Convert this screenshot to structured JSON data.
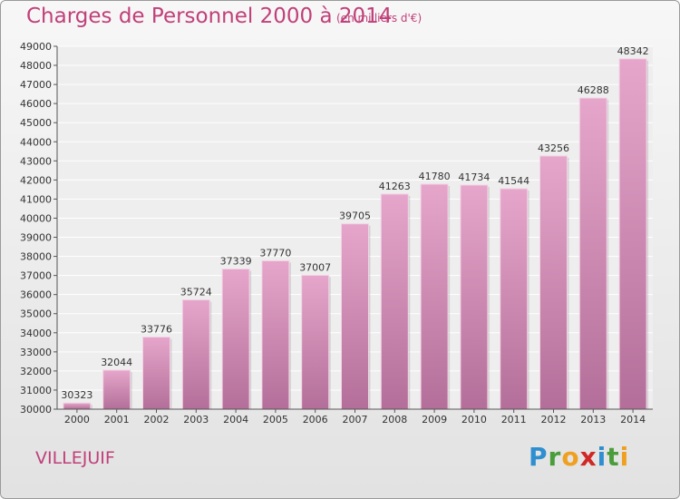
{
  "header": {
    "title": "Charges de Personnel 2000 à 2014",
    "subtitle": "(en milliers d'€)"
  },
  "footer": {
    "city": "VILLEJUIF",
    "logo": {
      "letters": [
        "P",
        "r",
        "o",
        "x",
        "i",
        "t",
        "i"
      ],
      "colors": [
        "#2e8fd0",
        "#4a9d3a",
        "#f0a020",
        "#d02828",
        "#2e8fd0",
        "#4a9d3a",
        "#f0a020"
      ]
    }
  },
  "colors": {
    "accent": "#c0407a",
    "bar_top": "#e6a6cb",
    "bar_bottom": "#b36f99"
  },
  "chart_data": {
    "type": "bar",
    "title": "Charges de Personnel 2000 à 2014",
    "subtitle": "(en milliers d'€)",
    "categories": [
      "2000",
      "2001",
      "2002",
      "2003",
      "2004",
      "2005",
      "2006",
      "2007",
      "2008",
      "2009",
      "2010",
      "2011",
      "2012",
      "2013",
      "2014"
    ],
    "values": [
      30323,
      32044,
      33776,
      35724,
      37339,
      37770,
      37007,
      39705,
      41263,
      41780,
      41734,
      41544,
      43256,
      46288,
      48342
    ],
    "data_labels": [
      "30323",
      "32044",
      "33776",
      "35724",
      "37339",
      "37770",
      "37007",
      "39705",
      "41263",
      "41780",
      "41734",
      "41544",
      "43256",
      "46288",
      "48342"
    ],
    "ylim": [
      30000,
      49000
    ],
    "yticks": [
      30000,
      31000,
      32000,
      33000,
      34000,
      35000,
      36000,
      37000,
      38000,
      39000,
      40000,
      41000,
      42000,
      43000,
      44000,
      45000,
      46000,
      47000,
      48000,
      49000
    ],
    "ytick_labels": [
      "30000",
      "31000",
      "32000",
      "33000",
      "34000",
      "35000",
      "36000",
      "37000",
      "38000",
      "39000",
      "40000",
      "41000",
      "42000",
      "43000",
      "44000",
      "45000",
      "46000",
      "47000",
      "48000",
      "49000"
    ],
    "grid": true,
    "legend": "none"
  }
}
